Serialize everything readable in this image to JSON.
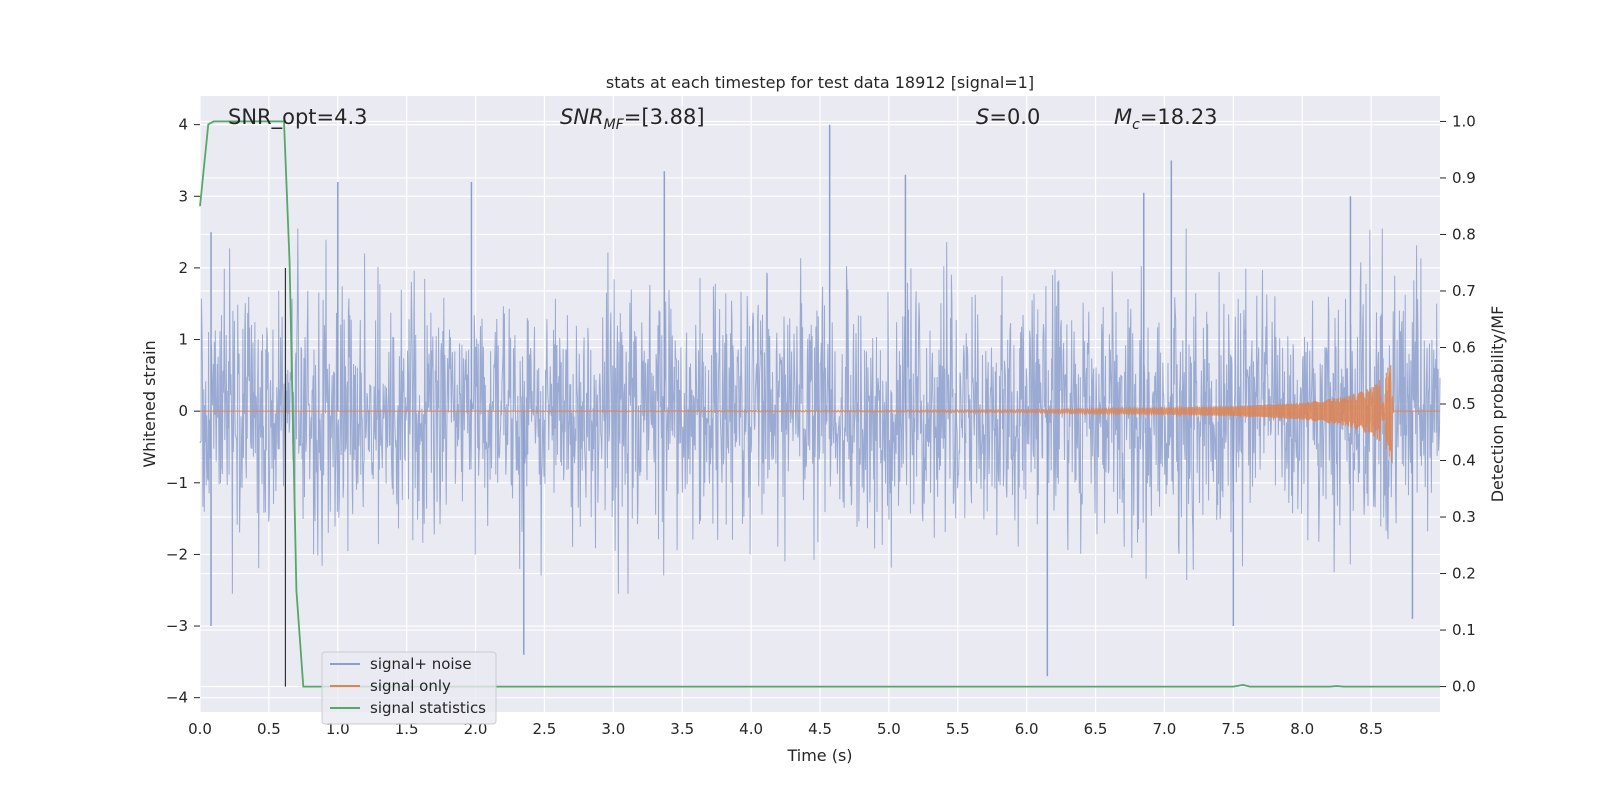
{
  "chart_data": {
    "type": "line",
    "title": "stats at each timestep for test data 18912 [signal=1]",
    "xlabel": "Time (s)",
    "ylabel": "Whitened strain",
    "y2label": "Detection probability/MF",
    "xlim": [
      0.0,
      9.0
    ],
    "ylim": [
      -4.2,
      4.4
    ],
    "y2lim": [
      -0.045,
      1.045
    ],
    "xticks": [
      "0.0",
      "0.5",
      "1.0",
      "1.5",
      "2.0",
      "2.5",
      "3.0",
      "3.5",
      "4.0",
      "4.5",
      "5.0",
      "5.5",
      "6.0",
      "6.5",
      "7.0",
      "7.5",
      "8.0",
      "8.5"
    ],
    "yticks": [
      "4",
      "3",
      "2",
      "1",
      "0",
      "−1",
      "−2",
      "−3",
      "−4"
    ],
    "y2ticks": [
      "1.0",
      "0.9",
      "0.8",
      "0.7",
      "0.6",
      "0.5",
      "0.4",
      "0.3",
      "0.2",
      "0.1",
      "0.0"
    ],
    "grid": true,
    "legend_position": "lower-left",
    "annotations": {
      "snr_opt": "SNR_opt=4.3",
      "snr_mf_base": "SNR",
      "snr_mf_sub": "MF",
      "snr_mf_value": "=[3.88]",
      "s_base": "S",
      "s_value": "=0.0",
      "mc_base": "M",
      "mc_sub": "c",
      "mc_value": "=18.23"
    },
    "vline_x": 0.62,
    "series": [
      {
        "name": "signal+ noise",
        "color": "#8c9fcc",
        "description": "whitened noisy strain, dense noise roughly within ±2.5 with spikes to 4.0",
        "spikes": [
          [
            0.08,
            2.5
          ],
          [
            0.08,
            -3.0
          ],
          [
            1.0,
            3.2
          ],
          [
            1.97,
            3.2
          ],
          [
            2.35,
            -3.4
          ],
          [
            3.37,
            3.35
          ],
          [
            4.57,
            4.0
          ],
          [
            5.12,
            3.3
          ],
          [
            6.15,
            -3.7
          ],
          [
            6.85,
            3.05
          ],
          [
            7.05,
            3.5
          ],
          [
            7.5,
            -3.0
          ],
          [
            8.35,
            3.0
          ],
          [
            8.8,
            -2.9
          ]
        ]
      },
      {
        "name": "signal only",
        "color": "#dd8452",
        "description": "chirp signal, amplitude growing from ~0 to ~0.75 at merger near 8.65 s",
        "points": [
          [
            0.0,
            0.0
          ],
          [
            5.0,
            0.01
          ],
          [
            6.0,
            0.02
          ],
          [
            7.0,
            0.05
          ],
          [
            7.5,
            0.07
          ],
          [
            8.0,
            0.12
          ],
          [
            8.3,
            0.2
          ],
          [
            8.5,
            0.33
          ],
          [
            8.6,
            0.5
          ],
          [
            8.65,
            0.75
          ],
          [
            8.66,
            0.0
          ],
          [
            9.0,
            0.0
          ]
        ]
      },
      {
        "name": "signal statistics",
        "color": "#55a868",
        "axis": "right",
        "points": [
          [
            0.0,
            0.85
          ],
          [
            0.06,
            0.995
          ],
          [
            0.1,
            1.0
          ],
          [
            0.61,
            1.0
          ],
          [
            0.65,
            0.75
          ],
          [
            0.7,
            0.17
          ],
          [
            0.75,
            0.0
          ],
          [
            7.5,
            0.0
          ],
          [
            7.57,
            0.003
          ],
          [
            7.62,
            0.0
          ],
          [
            8.2,
            0.0
          ],
          [
            8.25,
            0.001
          ],
          [
            8.3,
            0.0
          ],
          [
            9.0,
            0.0
          ]
        ]
      }
    ]
  }
}
